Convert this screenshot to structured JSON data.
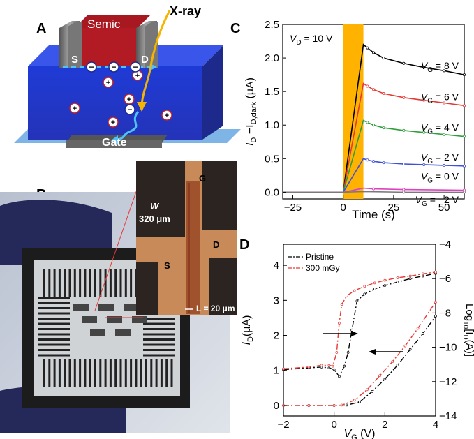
{
  "panels": {
    "a": {
      "letter": "A",
      "labels": {
        "semic": "Semic",
        "source": "S",
        "drain": "D",
        "xray": "X-ray",
        "gate": "Gate"
      }
    },
    "b": {
      "letter": "B",
      "inset_labels": {
        "g": "G",
        "d": "D",
        "s": "S",
        "w_symbol": "W",
        "w_value": "320 μm",
        "l_text": "L = 20 μm"
      }
    },
    "c": {
      "letter": "C"
    },
    "d": {
      "letter": "D"
    }
  },
  "chart_data": [
    {
      "panel": "C",
      "type": "line",
      "xlabel": "Time (s)",
      "ylabel_main": "I",
      "ylabel_sub1": "D",
      "ylabel_mid": " −I",
      "ylabel_sub2": "D,dark",
      "ylabel_unit": " (μA)",
      "xlim": [
        -30,
        60
      ],
      "ylim": [
        -0.1,
        2.5
      ],
      "xticks": [
        -25,
        0,
        25,
        50
      ],
      "yticks": [
        0.0,
        0.5,
        1.0,
        1.5,
        2.0,
        2.5
      ],
      "xtick_labels": [
        "−25",
        "0",
        "25",
        "50"
      ],
      "ytick_labels": [
        "0.0",
        "0.5",
        "1.0",
        "1.5",
        "2.0",
        "2.5"
      ],
      "annotation": {
        "prefix": "V",
        "sub": "D",
        "suffix": " = 10 V"
      },
      "xray_window": [
        0,
        10
      ],
      "xray_color": "#FFB300",
      "series": [
        {
          "name": "VG = 8 V",
          "label_prefix": "V",
          "label_sub": "G",
          "label_suffix": " = 8 V",
          "color": "#000000",
          "x": [
            -30,
            0,
            10,
            12,
            15,
            20,
            30,
            40,
            50,
            60
          ],
          "y": [
            0,
            0,
            2.2,
            2.15,
            2.08,
            2.0,
            1.92,
            1.86,
            1.81,
            1.75
          ]
        },
        {
          "name": "VG = 6 V",
          "label_prefix": "V",
          "label_sub": "G",
          "label_suffix": " = 6 V",
          "color": "#E53935",
          "x": [
            -30,
            0,
            10,
            12,
            15,
            20,
            30,
            40,
            50,
            60
          ],
          "y": [
            0,
            0,
            1.62,
            1.58,
            1.53,
            1.47,
            1.41,
            1.37,
            1.33,
            1.29
          ]
        },
        {
          "name": "VG = 4 V",
          "label_prefix": "V",
          "label_sub": "G",
          "label_suffix": " = 4 V",
          "color": "#2E9E3A",
          "x": [
            -30,
            0,
            10,
            12,
            15,
            20,
            30,
            40,
            50,
            60
          ],
          "y": [
            0,
            0,
            1.07,
            1.04,
            1.0,
            0.96,
            0.92,
            0.89,
            0.86,
            0.83
          ]
        },
        {
          "name": "VG = 2 V",
          "label_prefix": "V",
          "label_sub": "G",
          "label_suffix": " = 2 V",
          "color": "#3F51D9",
          "x": [
            -30,
            0,
            10,
            12,
            15,
            20,
            30,
            40,
            50,
            60
          ],
          "y": [
            0,
            0,
            0.5,
            0.48,
            0.46,
            0.44,
            0.42,
            0.41,
            0.4,
            0.39
          ]
        },
        {
          "name": "VG = 0 V",
          "label_prefix": "V",
          "label_sub": "G",
          "label_suffix": " = 0 V",
          "color": "#E040C0",
          "x": [
            -30,
            0,
            10,
            15,
            30,
            60
          ],
          "y": [
            0,
            0,
            0.06,
            0.05,
            0.04,
            0.03
          ]
        },
        {
          "name": "VG = −2 V",
          "label_prefix": "V",
          "label_sub": "G",
          "label_suffix": " = −2 V",
          "color": "#7A7A7A",
          "x": [
            -30,
            0,
            10,
            30,
            60
          ],
          "y": [
            0,
            0,
            0.01,
            0.0,
            0.0
          ]
        }
      ]
    },
    {
      "panel": "D",
      "type": "line",
      "xlabel_main": "V",
      "xlabel_sub": "G",
      "xlabel_unit": " (V)",
      "ylabel_main": "I",
      "ylabel_sub": "D",
      "ylabel_unit": "(μA)",
      "y2label_pre": "Log",
      "y2label_sub1": "10",
      "y2label_mid": "[I",
      "y2label_sub2": "D",
      "y2label_post": "(A)]",
      "xlim": [
        -2,
        4
      ],
      "ylim": [
        -0.3,
        4.6
      ],
      "y2lim": [
        -14,
        -4
      ],
      "xticks": [
        -2,
        0,
        2,
        4
      ],
      "yticks": [
        0,
        1,
        2,
        3,
        4
      ],
      "y2ticks": [
        -4,
        -6,
        -8,
        -10,
        -12,
        -14
      ],
      "xtick_labels": [
        "−2",
        "0",
        "2",
        "4"
      ],
      "ytick_labels": [
        "0",
        "1",
        "2",
        "3",
        "4"
      ],
      "y2tick_labels": [
        "−4",
        "−6",
        "−8",
        "−10",
        "−12",
        "−14"
      ],
      "legend": {
        "position": "top-left"
      },
      "series": [
        {
          "name": "Pristine",
          "color": "#000000",
          "dash": "8 3 2 3",
          "axis": "log",
          "x": [
            -2,
            -1,
            -0.5,
            -0.2,
            0.0,
            0.2,
            0.4,
            0.55,
            0.7,
            0.9,
            1.2,
            1.6,
            2.0,
            2.5,
            3.0,
            3.5,
            4.0
          ],
          "y": [
            -11.3,
            -11.2,
            -11.15,
            -11.2,
            -11.3,
            -11.7,
            -11.1,
            -10.3,
            -9.0,
            -7.3,
            -6.9,
            -6.6,
            -6.4,
            -6.2,
            -6.0,
            -5.85,
            -5.7
          ]
        },
        {
          "name": "Pristine",
          "color": "#000000",
          "dash": "8 3 2 3",
          "axis": "linear",
          "x": [
            -2,
            -1,
            0,
            0.5,
            1.0,
            1.5,
            2.0,
            2.5,
            3.0,
            3.5,
            4.0
          ],
          "y": [
            0,
            0,
            0,
            0.01,
            0.1,
            0.4,
            0.75,
            1.15,
            1.6,
            2.05,
            2.55
          ]
        },
        {
          "name": "300 mGy",
          "color": "#E53935",
          "dash": "8 3 2 3",
          "axis": "log",
          "x": [
            -2,
            -1,
            -0.5,
            -0.2,
            -0.05,
            0.1,
            0.2,
            0.3,
            0.5,
            0.8,
            1.2,
            1.6,
            2.0,
            2.5,
            3.0,
            3.5,
            4.0
          ],
          "y": [
            -11.25,
            -11.15,
            -11.05,
            -11.05,
            -11.1,
            -10.3,
            -8.6,
            -7.5,
            -7.0,
            -6.7,
            -6.45,
            -6.25,
            -6.1,
            -5.95,
            -5.85,
            -5.72,
            -5.62
          ]
        },
        {
          "name": "300 mGy",
          "color": "#E53935",
          "dash": "8 3 2 3",
          "axis": "linear",
          "x": [
            -2,
            -1,
            0,
            0.3,
            0.8,
            1.3,
            1.8,
            2.3,
            2.8,
            3.3,
            4.0
          ],
          "y": [
            0,
            0,
            0,
            0.01,
            0.15,
            0.45,
            0.85,
            1.25,
            1.7,
            2.2,
            2.95
          ]
        }
      ],
      "legend_entries": [
        "Pristine",
        "300 mGy"
      ]
    }
  ]
}
